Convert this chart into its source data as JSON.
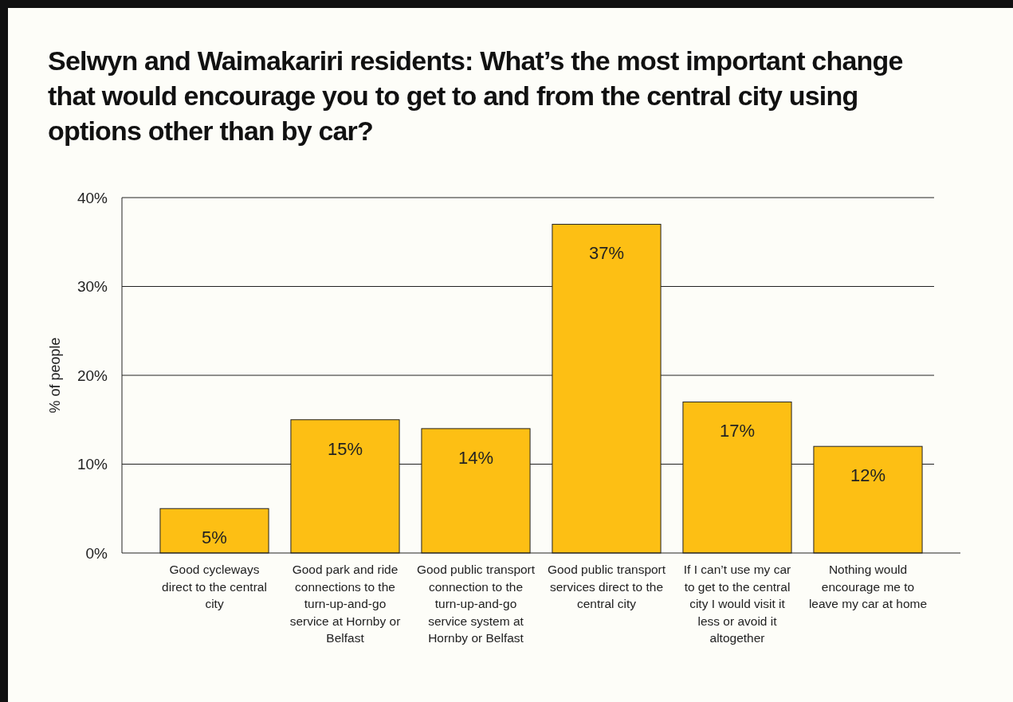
{
  "chart_data": {
    "type": "bar",
    "title": "Selwyn and Waimakariri residents: What’s the most important change that would encourage you to get to and from the central city using options other than by car?",
    "ylabel": "% of people",
    "categories": [
      "Good cycleways direct to the central city",
      "Good park and ride connections to the turn-up-and-go service at Hornby or Belfast",
      "Good public transport connection to the turn-up-and-go service system at Hornby or Belfast",
      "Good public transport services direct to the central city",
      "If I can’t use my car to get to the central city I would visit it less or avoid it altogether",
      "Nothing would encourage me to leave my car at home"
    ],
    "values": [
      5,
      15,
      14,
      37,
      17,
      12
    ],
    "value_labels": [
      "5%",
      "15%",
      "14%",
      "37%",
      "17%",
      "12%"
    ],
    "color": "#fdbf14",
    "ylim": [
      0,
      40
    ],
    "yticks": [
      {
        "value": 0,
        "label": "0%"
      },
      {
        "value": 10,
        "label": "10%"
      },
      {
        "value": 20,
        "label": "20%"
      },
      {
        "value": 30,
        "label": "30%"
      },
      {
        "value": 40,
        "label": "40%"
      }
    ],
    "grid": "y"
  }
}
